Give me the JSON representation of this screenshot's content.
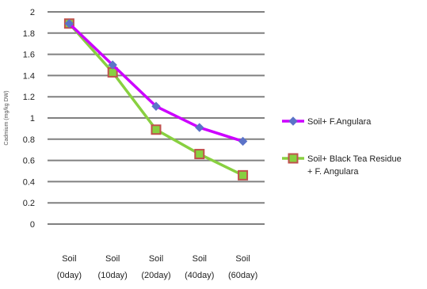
{
  "chart_data": {
    "type": "line",
    "title": "",
    "xlabel": "",
    "ylabel": "Cadmium (mg/kg DW)",
    "ylim": [
      0,
      2
    ],
    "yticks": [
      "0",
      "0.2",
      "0.4",
      "0.6",
      "0.8",
      "1",
      "1.2",
      "1.4",
      "1.6",
      "1.8",
      "2"
    ],
    "categories": [
      [
        "Soil",
        "(0day)"
      ],
      [
        "Soil",
        "(10day)"
      ],
      [
        "Soil",
        "(20day)"
      ],
      [
        "Soil",
        "(40day)"
      ],
      [
        "Soil",
        "(60day)"
      ]
    ],
    "grid": true,
    "legend_position": "right",
    "series": [
      {
        "name": "Soil+ F.Angulara",
        "values": [
          1.89,
          1.5,
          1.11,
          0.91,
          0.78
        ],
        "color": "#cc00ff",
        "marker": "diamond",
        "marker_color": "#5b73c8"
      },
      {
        "name": "Soil+ Black Tea Residue + F. Angulara",
        "name_lines": [
          "Soil+ Black Tea Residue",
          "+ F. Angulara"
        ],
        "values": [
          1.89,
          1.43,
          0.89,
          0.66,
          0.46
        ],
        "color": "#88d040",
        "marker": "square",
        "marker_color": "#c0504d"
      }
    ]
  }
}
